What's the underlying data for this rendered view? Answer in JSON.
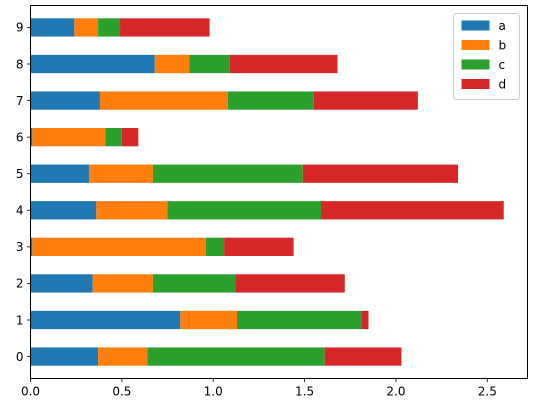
{
  "chart_data": {
    "type": "bar",
    "orientation": "horizontal",
    "stacked": true,
    "categories": [
      "0",
      "1",
      "2",
      "3",
      "4",
      "5",
      "6",
      "7",
      "8",
      "9"
    ],
    "series": [
      {
        "name": "a",
        "color": "#1f77b4",
        "values": [
          0.37,
          0.82,
          0.34,
          0.01,
          0.36,
          0.32,
          0.01,
          0.38,
          0.68,
          0.24
        ]
      },
      {
        "name": "b",
        "color": "#ff7f0e",
        "values": [
          0.27,
          0.31,
          0.33,
          0.95,
          0.39,
          0.35,
          0.4,
          0.7,
          0.19,
          0.13
        ]
      },
      {
        "name": "c",
        "color": "#2ca02c",
        "values": [
          0.97,
          0.68,
          0.45,
          0.1,
          0.84,
          0.82,
          0.09,
          0.47,
          0.22,
          0.12
        ]
      },
      {
        "name": "d",
        "color": "#d62728",
        "values": [
          0.42,
          0.04,
          0.6,
          0.38,
          1.0,
          0.85,
          0.09,
          0.57,
          0.59,
          0.49
        ]
      }
    ],
    "xlim": [
      0,
      2.72
    ],
    "xticks": [
      "0.0",
      "0.5",
      "1.0",
      "1.5",
      "2.0",
      "2.5"
    ],
    "xtick_values": [
      0,
      0.5,
      1.0,
      1.5,
      2.0,
      2.5
    ],
    "title": "",
    "xlabel": "",
    "ylabel": "",
    "grid": false,
    "legend": "top-right"
  }
}
